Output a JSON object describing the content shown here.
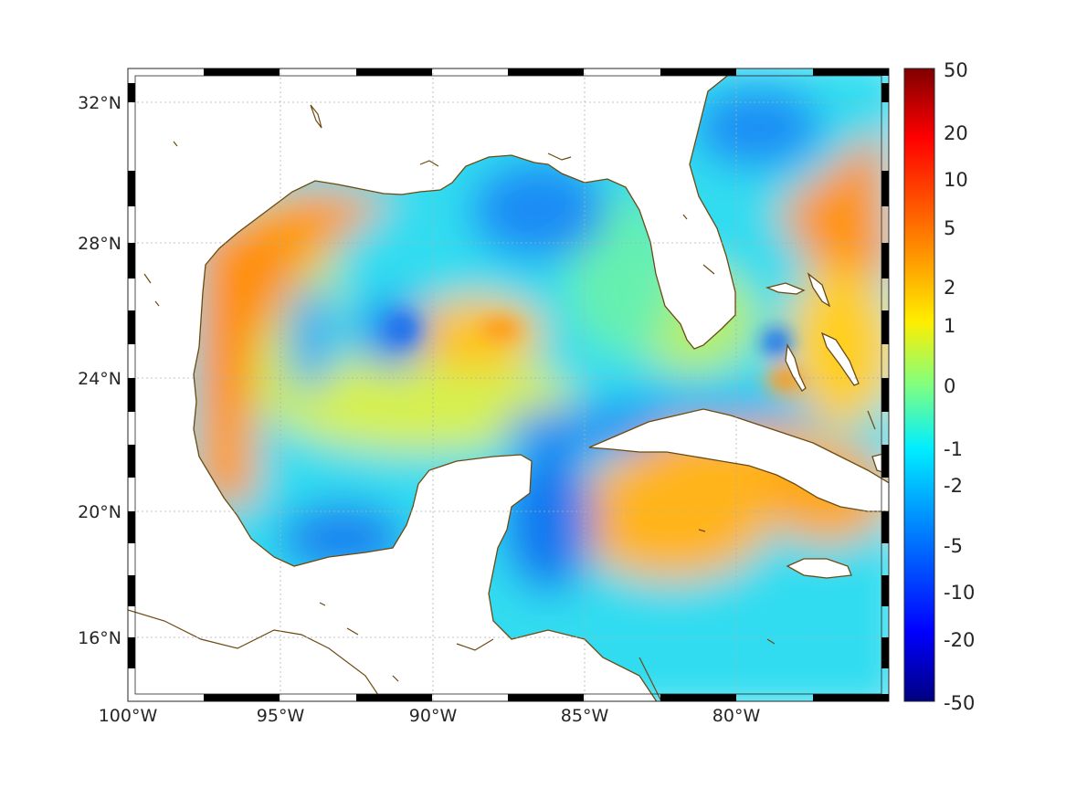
{
  "map": {
    "region": "Gulf of Mexico and western Caribbean",
    "lon_range": [
      -100,
      -75
    ],
    "lat_range": [
      14.2,
      33
    ],
    "lon_ticks": [
      {
        "value": -100,
        "label": "100°W"
      },
      {
        "value": -95,
        "label": "95°W"
      },
      {
        "value": -90,
        "label": "90°W"
      },
      {
        "value": -85,
        "label": "85°W"
      },
      {
        "value": -80,
        "label": "80°W"
      }
    ],
    "lat_ticks": [
      {
        "value": 32,
        "label": "32°N"
      },
      {
        "value": 28,
        "label": "28°N"
      },
      {
        "value": 24,
        "label": "24°N"
      },
      {
        "value": 20,
        "label": "20°N"
      },
      {
        "value": 16,
        "label": "16°N"
      }
    ],
    "grid": "dotted",
    "coastline_color": "#6b4a12",
    "land_color": "#ffffff",
    "colormap": "jet",
    "features": [
      {
        "name": "west-gulf-warm-band",
        "lon": -97.5,
        "lat": 26.5,
        "value": 4
      },
      {
        "name": "central-gulf-warm-patch",
        "lon": -88.5,
        "lat": 25.3,
        "value": 3
      },
      {
        "name": "loop-current-cold-core",
        "lon": -86,
        "lat": 28.8,
        "value": -3
      },
      {
        "name": "western-gulf-cold-eddy",
        "lon": -91.3,
        "lat": 25.5,
        "value": -4
      },
      {
        "name": "yucatan-channel-cold-tongue",
        "lon": -86.5,
        "lat": 19.5,
        "value": -4
      },
      {
        "name": "bay-of-campeche-cold",
        "lon": -94,
        "lat": 18.8,
        "value": -4
      },
      {
        "name": "south-of-cuba-warm",
        "lon": -82,
        "lat": 19.8,
        "value": 3
      },
      {
        "name": "atlantic-warm-band",
        "lon": -76,
        "lat": 29,
        "value": 4
      },
      {
        "name": "atlantic-cold-northwest",
        "lon": -78.5,
        "lat": 31.5,
        "value": -2
      },
      {
        "name": "bahamas-cold-spot",
        "lon": -78.9,
        "lat": 25.0,
        "value": -4
      }
    ]
  },
  "colorbar": {
    "labels": [
      "50",
      "20",
      "10",
      "5",
      "2",
      "1",
      "0",
      "-1",
      "-2",
      "-5",
      "-10",
      "-20",
      "-50"
    ],
    "min": -50,
    "max": 50
  }
}
